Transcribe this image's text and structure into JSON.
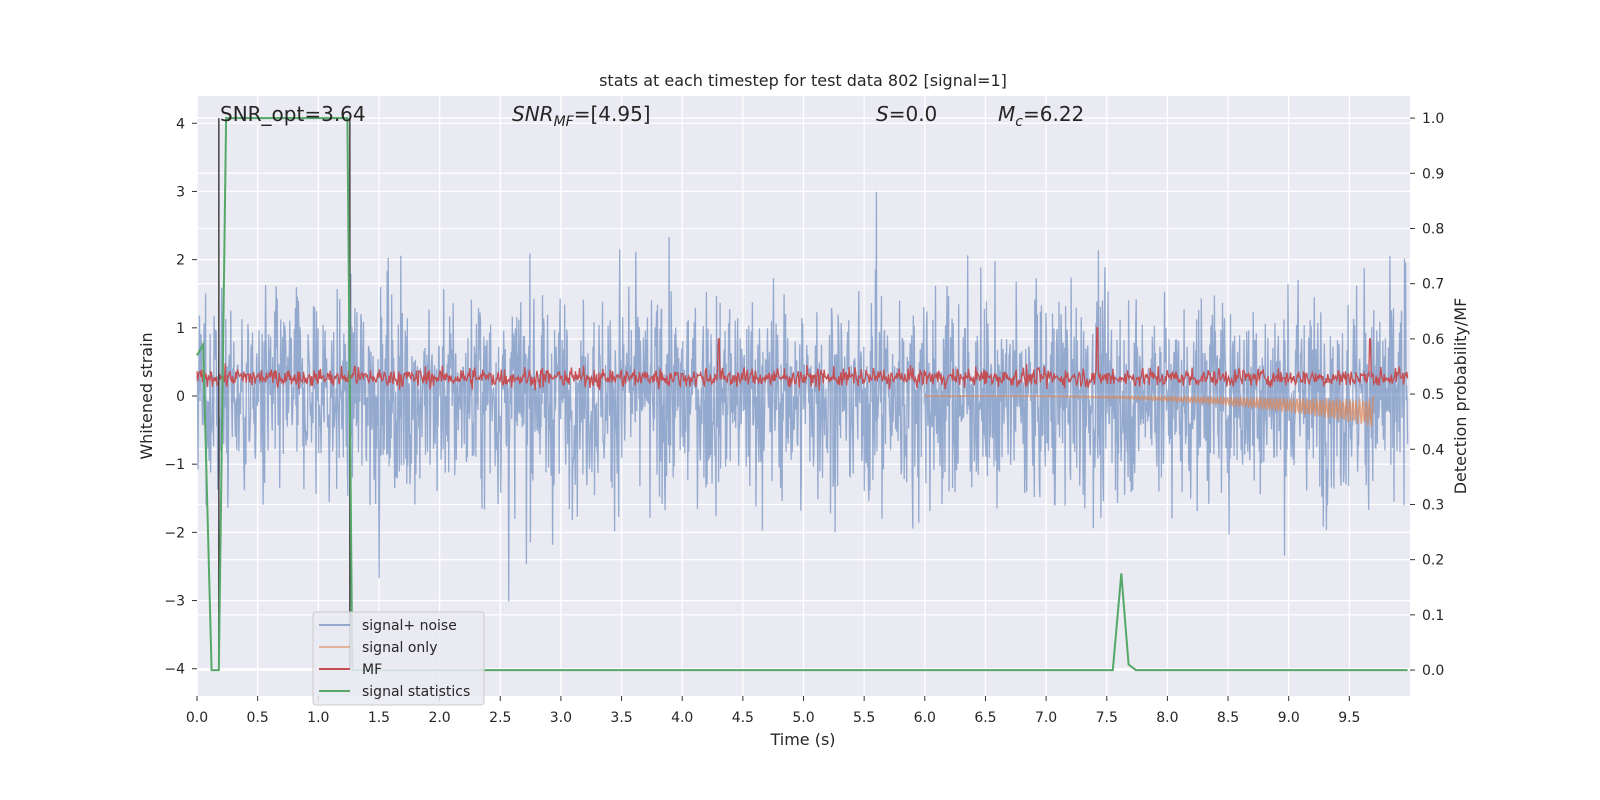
{
  "chart_data": {
    "type": "line",
    "title": "stats at each timestep for test data 802 [signal=1]",
    "xlabel": "Time (s)",
    "ylabel": "Whitened strain",
    "y2label": "Detection probability/MF",
    "xlim": [
      0.0,
      10.0
    ],
    "ylim": [
      -4.4,
      4.4
    ],
    "y2lim": [
      -0.047,
      1.04
    ],
    "x_ticks": [
      "0.0",
      "0.5",
      "1.0",
      "1.5",
      "2.0",
      "2.5",
      "3.0",
      "3.5",
      "4.0",
      "4.5",
      "5.0",
      "5.5",
      "6.0",
      "6.5",
      "7.0",
      "7.5",
      "8.0",
      "8.5",
      "9.0",
      "9.5"
    ],
    "y_ticks": [
      "4",
      "3",
      "2",
      "1",
      "0",
      "−1",
      "−2",
      "−3",
      "−4"
    ],
    "y2_ticks": [
      "1.0",
      "0.9",
      "0.8",
      "0.7",
      "0.6",
      "0.5",
      "0.4",
      "0.3",
      "0.2",
      "0.1",
      "0.0"
    ],
    "grid": true,
    "legend_position": "lower-left",
    "annotations": {
      "snr_opt": {
        "label": "SNR_opt=",
        "value": "3.64"
      },
      "snr_mf": {
        "label": "SNR",
        "sub": "MF",
        "eq": "=",
        "value": "[4.95]"
      },
      "s": {
        "label": "S",
        "eq": "=",
        "value": "0.0"
      },
      "mc": {
        "label": "M",
        "sub": "c",
        "eq": "=",
        "value": "6.22"
      }
    },
    "markers_x": [
      0.18,
      1.26
    ],
    "series": [
      {
        "name": "signal+ noise",
        "color": "#4c72b0",
        "axis": "left",
        "description_amplitude": {
          "typical_abs": 1.1,
          "peak_abs": 4.0
        }
      },
      {
        "name": "signal only",
        "color": "#dd8452",
        "axis": "left",
        "chirp": {
          "start": 6.0,
          "end": 9.68,
          "min": -0.45
        }
      },
      {
        "name": "MF",
        "color": "#c44e52",
        "axis": "right",
        "baseline": 0.53,
        "noise_range": [
          0.5,
          0.58
        ],
        "peaks": [
          {
            "x": 1.3,
            "y": 0.55
          },
          {
            "x": 4.3,
            "y": 0.6
          },
          {
            "x": 7.42,
            "y": 0.62
          },
          {
            "x": 9.67,
            "y": 0.6
          }
        ]
      },
      {
        "name": "signal statistics",
        "color": "#55a868",
        "axis": "right",
        "x": [
          0.0,
          0.05,
          0.12,
          0.18,
          0.24,
          0.26,
          1.24,
          1.28,
          1.29,
          7.55,
          7.62,
          7.68,
          7.74,
          9.98
        ],
        "y": [
          0.57,
          0.59,
          0.0,
          0.0,
          1.0,
          1.0,
          1.0,
          0.0,
          0.0,
          0.0,
          0.175,
          0.01,
          0.0,
          0.0
        ]
      }
    ]
  }
}
